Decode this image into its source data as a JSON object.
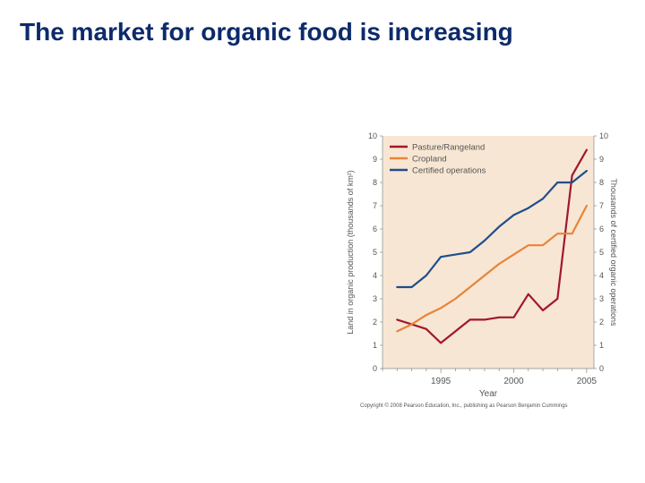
{
  "slide": {
    "title": "The market for organic food is increasing"
  },
  "chart_data": {
    "type": "line",
    "title": "",
    "xlabel": "Year",
    "ylabel": "Land in organic production (thousands of km²)",
    "y2label": "Thousands of certified organic operations",
    "xlim": [
      1991,
      2005.5
    ],
    "xticks": [
      1995,
      2000,
      2005
    ],
    "ylim": [
      0,
      10
    ],
    "yticks": [
      0,
      1,
      2,
      3,
      4,
      5,
      6,
      7,
      8,
      9,
      10
    ],
    "y2lim": [
      0,
      10
    ],
    "y2ticks": [
      0,
      1,
      2,
      3,
      4,
      5,
      6,
      7,
      8,
      9,
      10
    ],
    "grid": false,
    "background": "#f7e6d3",
    "legend_position": "top-left",
    "series": [
      {
        "name": "Pasture/Rangeland",
        "color": "#a3172b",
        "axis": "left",
        "x": [
          1992,
          1993,
          1994,
          1995,
          1996,
          1997,
          1998,
          1999,
          2000,
          2001,
          2002,
          2003,
          2004,
          2005
        ],
        "y": [
          2.1,
          1.9,
          1.7,
          1.1,
          1.6,
          2.1,
          2.1,
          2.2,
          2.2,
          3.2,
          2.5,
          3.0,
          8.3,
          9.4
        ]
      },
      {
        "name": "Cropland",
        "color": "#e8843a",
        "axis": "left",
        "x": [
          1992,
          1993,
          1994,
          1995,
          1996,
          1997,
          1998,
          1999,
          2000,
          2001,
          2002,
          2003,
          2004,
          2005
        ],
        "y": [
          1.6,
          1.9,
          2.3,
          2.6,
          3.0,
          3.5,
          4.0,
          4.5,
          4.9,
          5.3,
          5.3,
          5.8,
          5.8,
          7.0
        ]
      },
      {
        "name": "Certified operations",
        "color": "#1f4e8c",
        "axis": "right",
        "x": [
          1992,
          1993,
          1994,
          1995,
          1996,
          1997,
          1998,
          1999,
          2000,
          2001,
          2002,
          2003,
          2004,
          2005
        ],
        "y": [
          3.5,
          3.5,
          4.0,
          4.8,
          4.9,
          5.0,
          5.5,
          6.1,
          6.6,
          6.9,
          7.3,
          8.0,
          8.0,
          8.5
        ]
      }
    ]
  },
  "copyright": "Copyright © 2008 Pearson Education, Inc., publishing as Pearson Benjamin Cummings"
}
